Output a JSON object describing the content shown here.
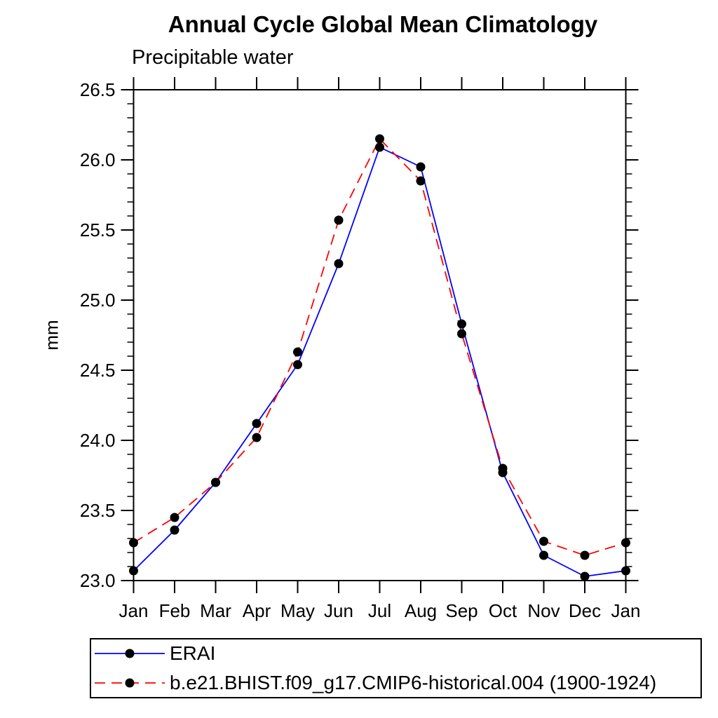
{
  "chart_data": {
    "type": "line",
    "title": "Annual Cycle Global Mean Climatology",
    "subtitle": "Precipitable water",
    "ylabel": "mm",
    "categories": [
      "Jan",
      "Feb",
      "Mar",
      "Apr",
      "May",
      "Jun",
      "Jul",
      "Aug",
      "Sep",
      "Oct",
      "Nov",
      "Dec",
      "Jan"
    ],
    "ylim": [
      23.0,
      26.5
    ],
    "ytick_major_step": 0.5,
    "ytick_minor_step": 0.1,
    "grid": false,
    "axis_color": "#000000",
    "background_color": "#ffffff",
    "legend_position": "bottom-box",
    "series": [
      {
        "name": "ERAI",
        "color": "#0000ff",
        "line_style": "solid",
        "marker": "filled-circle",
        "marker_color": "#000000",
        "values": [
          23.07,
          23.36,
          23.7,
          24.12,
          24.54,
          25.26,
          26.09,
          25.95,
          24.83,
          23.77,
          23.18,
          23.03,
          23.07
        ]
      },
      {
        "name": "b.e21.BHIST.f09_g17.CMIP6-historical.004 (1900-1924)",
        "color": "#ff0000",
        "line_style": "dashed",
        "marker": "filled-circle",
        "marker_color": "#000000",
        "values": [
          23.27,
          23.45,
          23.7,
          24.02,
          24.63,
          25.57,
          26.15,
          25.85,
          24.76,
          23.8,
          23.28,
          23.18,
          23.27
        ]
      }
    ]
  }
}
